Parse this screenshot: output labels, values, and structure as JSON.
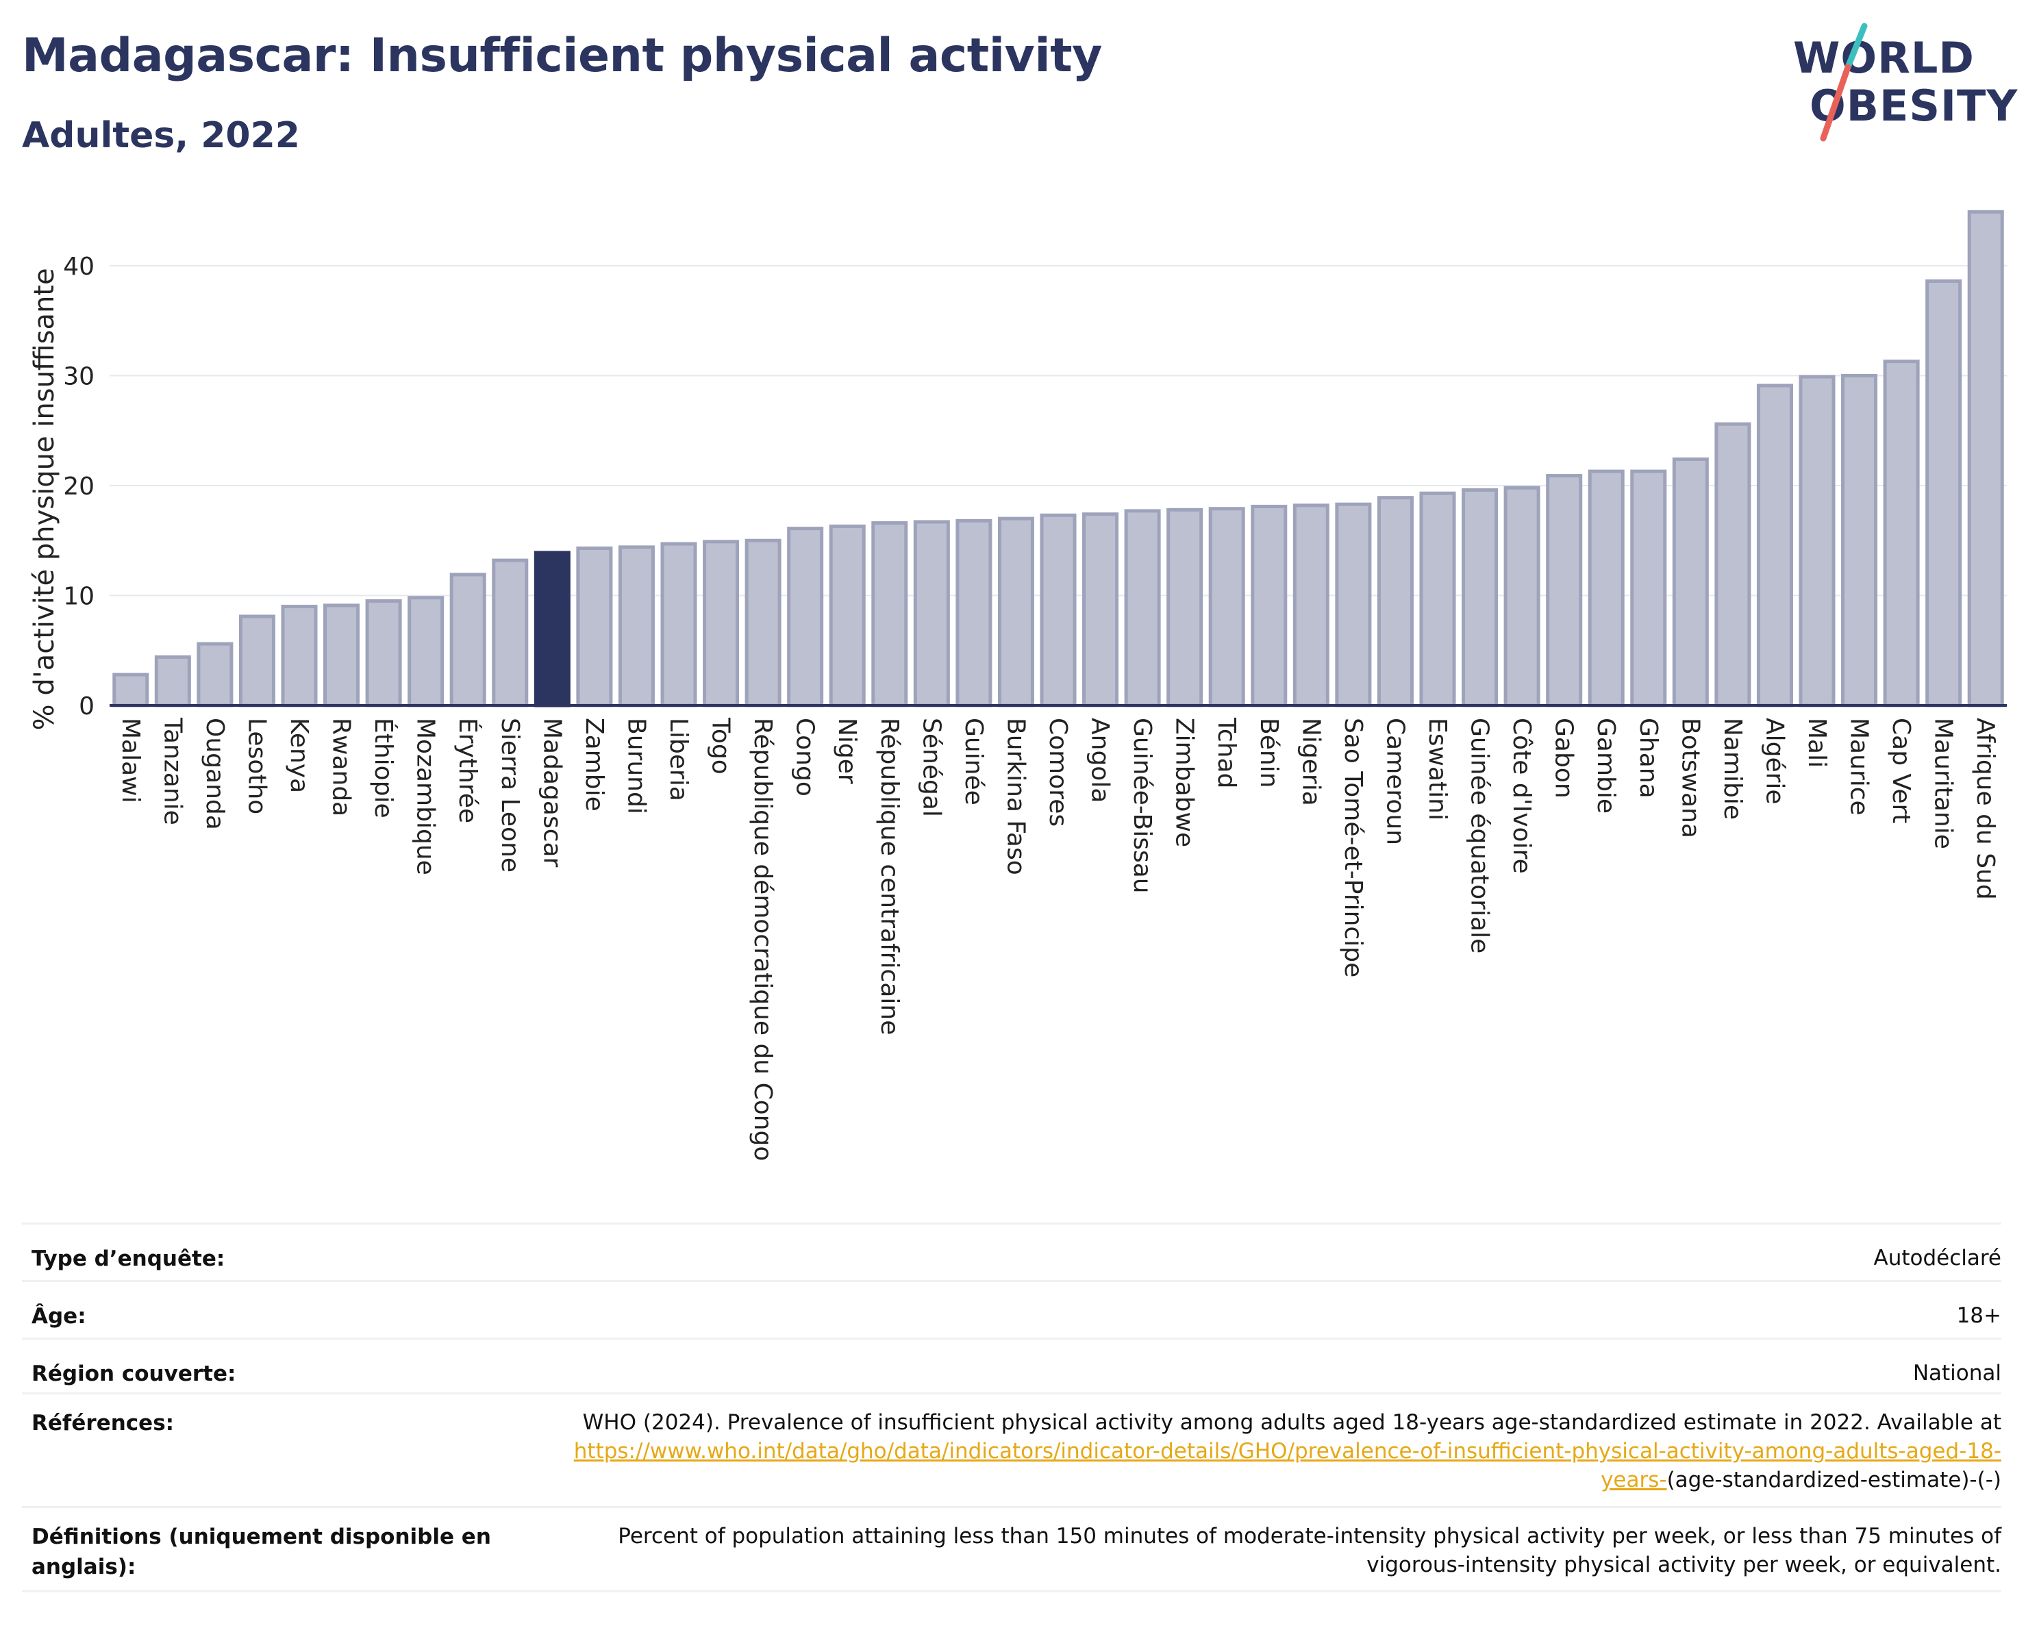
{
  "header": {
    "title": "Madagascar: Insufficient physical activity",
    "subtitle": "Adultes, 2022"
  },
  "logo": {
    "line1": "WORLD",
    "line2": "OBESITY"
  },
  "colors": {
    "bar": "#bcc0d0",
    "bar_stroke": "#9ea3bb",
    "highlight": "#2b3560",
    "text": "#2b3560",
    "grid": "#e6e8ee",
    "logo_slash_top": "#3cbfbf",
    "logo_slash_bottom": "#e8625a",
    "link": "#e6a817"
  },
  "chart_data": {
    "type": "bar",
    "ylabel": "% d'activité physique insuffisante",
    "xlabel": "",
    "ylim": [
      0,
      45
    ],
    "yticks": [
      0,
      10,
      20,
      30,
      40
    ],
    "grid": true,
    "highlight": "Madagascar",
    "categories": [
      "Malawi",
      "Tanzanie",
      "Ouganda",
      "Lesotho",
      "Kenya",
      "Rwanda",
      "Éthiopie",
      "Mozambique",
      "Érythrée",
      "Sierra Leone",
      "Madagascar",
      "Zambie",
      "Burundi",
      "Liberia",
      "Togo",
      "République démocratique du Congo",
      "Congo",
      "Niger",
      "République centrafricaine",
      "Sénégal",
      "Guinée",
      "Burkina Faso",
      "Comores",
      "Angola",
      "Guinée-Bissau",
      "Zimbabwe",
      "Tchad",
      "Bénin",
      "Nigeria",
      "Sao Tomé-et-Principe",
      "Cameroun",
      "Eswatini",
      "Guinée équatoriale",
      "Côte d'Ivoire",
      "Gabon",
      "Gambie",
      "Ghana",
      "Botswana",
      "Namibie",
      "Algérie",
      "Mali",
      "Maurice",
      "Cap Vert",
      "Mauritanie",
      "Afrique du Sud"
    ],
    "values": [
      2.8,
      4.4,
      5.6,
      8.1,
      9.0,
      9.1,
      9.5,
      9.8,
      11.9,
      13.2,
      13.9,
      14.3,
      14.4,
      14.7,
      14.9,
      15.0,
      16.1,
      16.3,
      16.6,
      16.7,
      16.8,
      17.0,
      17.3,
      17.4,
      17.7,
      17.8,
      17.9,
      18.1,
      18.2,
      18.3,
      18.9,
      19.3,
      19.6,
      19.8,
      20.9,
      21.3,
      21.3,
      22.4,
      25.6,
      29.1,
      29.9,
      30.0,
      31.3,
      38.6,
      44.9
    ]
  },
  "meta": [
    {
      "label": "Type d’enquête:",
      "value": "Autodéclaré"
    },
    {
      "label": "Âge:",
      "value": "18+"
    },
    {
      "label": "Région couverte:",
      "value": "National"
    },
    {
      "label": "Références:",
      "value_prefix": "WHO (2024). Prevalence of insufficient physical activity among adults aged 18-years age-standardized estimate in 2022. Available at",
      "link": "https://www.who.int/data/gho/data/indicators/indicator-details/GHO/prevalence-of-insufficient-physical-activity-among-adults-aged-18-years-",
      "value_suffix": "(age-standardized-estimate)-(-)"
    },
    {
      "label": "Définitions (uniquement disponible en anglais):",
      "value": "Percent of population attaining less than 150 minutes of moderate-intensity physical activity per week, or less than 75 minutes of vigorous-intensity physical activity per week, or equivalent."
    }
  ]
}
